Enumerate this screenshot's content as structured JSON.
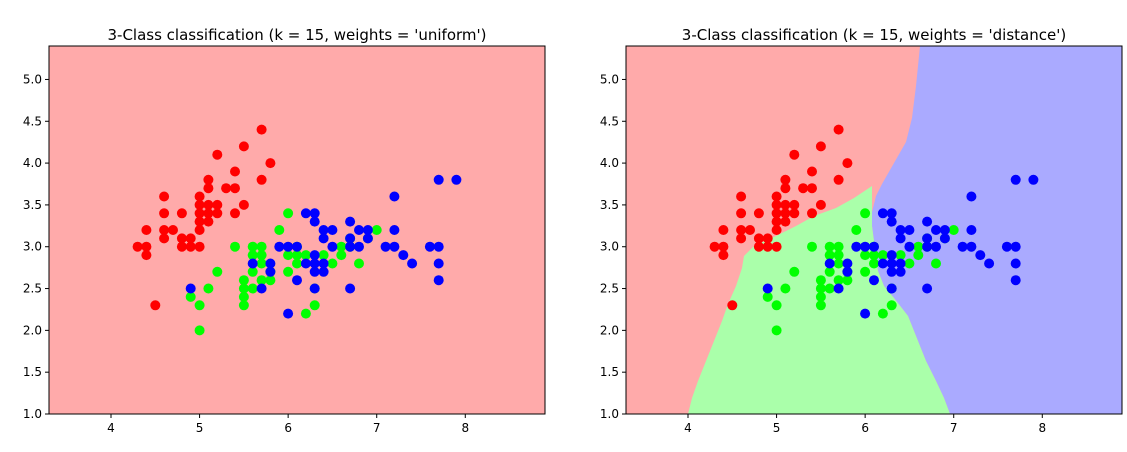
{
  "chart_data": [
    {
      "type": "scatter",
      "title": "3-Class classification (k = 15, weights = 'uniform')",
      "xlabel": "",
      "ylabel": "",
      "xlim": [
        3.3,
        8.9
      ],
      "ylim": [
        1.0,
        5.4
      ],
      "xticks": [
        "4",
        "5",
        "6",
        "7",
        "8"
      ],
      "yticks": [
        "1.0",
        "1.5",
        "2.0",
        "2.5",
        "3.0",
        "3.5",
        "4.0",
        "4.5",
        "5.0"
      ],
      "background_regions": "entire plot area predicted as red class",
      "grid": false,
      "series": [
        {
          "color": "#ff0000",
          "points": [
            [
              4.3,
              3.0
            ],
            [
              4.4,
              2.9
            ],
            [
              4.4,
              3.0
            ],
            [
              4.4,
              3.2
            ],
            [
              4.5,
              2.3
            ],
            [
              4.6,
              3.1
            ],
            [
              4.6,
              3.2
            ],
            [
              4.6,
              3.4
            ],
            [
              4.6,
              3.6
            ],
            [
              4.7,
              3.2
            ],
            [
              4.8,
              3.0
            ],
            [
              4.8,
              3.1
            ],
            [
              4.8,
              3.4
            ],
            [
              4.9,
              3.0
            ],
            [
              4.9,
              3.1
            ],
            [
              5.0,
              3.0
            ],
            [
              5.0,
              3.2
            ],
            [
              5.0,
              3.3
            ],
            [
              5.0,
              3.4
            ],
            [
              5.0,
              3.5
            ],
            [
              5.0,
              3.6
            ],
            [
              5.1,
              3.3
            ],
            [
              5.1,
              3.4
            ],
            [
              5.1,
              3.5
            ],
            [
              5.1,
              3.7
            ],
            [
              5.1,
              3.8
            ],
            [
              5.2,
              3.4
            ],
            [
              5.2,
              3.5
            ],
            [
              5.2,
              4.1
            ],
            [
              5.3,
              3.7
            ],
            [
              5.4,
              3.4
            ],
            [
              5.4,
              3.7
            ],
            [
              5.4,
              3.9
            ],
            [
              5.5,
              3.5
            ],
            [
              5.5,
              4.2
            ],
            [
              5.7,
              3.8
            ],
            [
              5.7,
              4.4
            ],
            [
              5.8,
              4.0
            ]
          ]
        },
        {
          "color": "#00ff00",
          "points": [
            [
              4.9,
              2.4
            ],
            [
              5.0,
              2.0
            ],
            [
              5.0,
              2.3
            ],
            [
              5.1,
              2.5
            ],
            [
              5.2,
              2.7
            ],
            [
              5.4,
              3.0
            ],
            [
              5.5,
              2.3
            ],
            [
              5.5,
              2.4
            ],
            [
              5.5,
              2.5
            ],
            [
              5.5,
              2.6
            ],
            [
              5.6,
              2.5
            ],
            [
              5.6,
              2.7
            ],
            [
              5.6,
              2.9
            ],
            [
              5.6,
              3.0
            ],
            [
              5.7,
              2.6
            ],
            [
              5.7,
              2.8
            ],
            [
              5.7,
              2.9
            ],
            [
              5.7,
              3.0
            ],
            [
              5.8,
              2.6
            ],
            [
              5.8,
              2.7
            ],
            [
              5.9,
              3.2
            ],
            [
              6.0,
              2.7
            ],
            [
              6.0,
              2.9
            ],
            [
              6.0,
              3.4
            ],
            [
              6.1,
              2.8
            ],
            [
              6.1,
              2.9
            ],
            [
              6.1,
              3.0
            ],
            [
              6.2,
              2.2
            ],
            [
              6.2,
              2.9
            ],
            [
              6.3,
              2.3
            ],
            [
              6.3,
              2.5
            ],
            [
              6.4,
              2.9
            ],
            [
              6.5,
              2.8
            ],
            [
              6.6,
              2.9
            ],
            [
              6.6,
              3.0
            ],
            [
              6.7,
              3.0
            ],
            [
              6.7,
              3.1
            ],
            [
              6.8,
              2.8
            ],
            [
              6.9,
              3.1
            ],
            [
              7.0,
              3.2
            ]
          ]
        },
        {
          "color": "#0000ff",
          "points": [
            [
              4.9,
              2.5
            ],
            [
              5.6,
              2.8
            ],
            [
              5.7,
              2.5
            ],
            [
              5.8,
              2.7
            ],
            [
              5.8,
              2.8
            ],
            [
              5.9,
              3.0
            ],
            [
              6.0,
              2.2
            ],
            [
              6.0,
              3.0
            ],
            [
              6.1,
              2.6
            ],
            [
              6.1,
              3.0
            ],
            [
              6.2,
              2.8
            ],
            [
              6.2,
              3.4
            ],
            [
              6.3,
              2.5
            ],
            [
              6.3,
              2.7
            ],
            [
              6.3,
              2.8
            ],
            [
              6.3,
              2.9
            ],
            [
              6.3,
              3.3
            ],
            [
              6.3,
              3.4
            ],
            [
              6.4,
              2.7
            ],
            [
              6.4,
              2.8
            ],
            [
              6.4,
              3.1
            ],
            [
              6.4,
              3.2
            ],
            [
              6.5,
              3.0
            ],
            [
              6.5,
              3.2
            ],
            [
              6.7,
              2.5
            ],
            [
              6.7,
              3.0
            ],
            [
              6.7,
              3.1
            ],
            [
              6.7,
              3.3
            ],
            [
              6.8,
              3.0
            ],
            [
              6.8,
              3.2
            ],
            [
              6.9,
              3.1
            ],
            [
              6.9,
              3.2
            ],
            [
              7.1,
              3.0
            ],
            [
              7.2,
              3.0
            ],
            [
              7.2,
              3.2
            ],
            [
              7.2,
              3.6
            ],
            [
              7.3,
              2.9
            ],
            [
              7.4,
              2.8
            ],
            [
              7.6,
              3.0
            ],
            [
              7.7,
              2.6
            ],
            [
              7.7,
              2.8
            ],
            [
              7.7,
              3.0
            ],
            [
              7.7,
              3.8
            ],
            [
              7.9,
              3.8
            ]
          ]
        }
      ]
    },
    {
      "type": "scatter",
      "title": "3-Class classification (k = 15, weights = 'distance')",
      "xlabel": "",
      "ylabel": "",
      "xlim": [
        3.3,
        8.9
      ],
      "ylim": [
        1.0,
        5.4
      ],
      "xticks": [
        "4",
        "5",
        "6",
        "7",
        "8"
      ],
      "yticks": [
        "1.0",
        "1.5",
        "2.0",
        "2.5",
        "3.0",
        "3.5",
        "4.0",
        "4.5",
        "5.0"
      ],
      "background_regions": "red class left/top, green class bottom-center, blue class right",
      "region_colors": {
        "red": "#ffaaaa",
        "green": "#aaffaa",
        "blue": "#aaaaff"
      },
      "grid": false,
      "series": [
        {
          "color": "#ff0000",
          "points": [
            [
              4.3,
              3.0
            ],
            [
              4.4,
              2.9
            ],
            [
              4.4,
              3.0
            ],
            [
              4.4,
              3.2
            ],
            [
              4.5,
              2.3
            ],
            [
              4.6,
              3.1
            ],
            [
              4.6,
              3.2
            ],
            [
              4.6,
              3.4
            ],
            [
              4.6,
              3.6
            ],
            [
              4.7,
              3.2
            ],
            [
              4.8,
              3.0
            ],
            [
              4.8,
              3.1
            ],
            [
              4.8,
              3.4
            ],
            [
              4.9,
              3.0
            ],
            [
              4.9,
              3.1
            ],
            [
              5.0,
              3.0
            ],
            [
              5.0,
              3.2
            ],
            [
              5.0,
              3.3
            ],
            [
              5.0,
              3.4
            ],
            [
              5.0,
              3.5
            ],
            [
              5.0,
              3.6
            ],
            [
              5.1,
              3.3
            ],
            [
              5.1,
              3.4
            ],
            [
              5.1,
              3.5
            ],
            [
              5.1,
              3.7
            ],
            [
              5.1,
              3.8
            ],
            [
              5.2,
              3.4
            ],
            [
              5.2,
              3.5
            ],
            [
              5.2,
              4.1
            ],
            [
              5.3,
              3.7
            ],
            [
              5.4,
              3.4
            ],
            [
              5.4,
              3.7
            ],
            [
              5.4,
              3.9
            ],
            [
              5.5,
              3.5
            ],
            [
              5.5,
              4.2
            ],
            [
              5.7,
              3.8
            ],
            [
              5.7,
              4.4
            ],
            [
              5.8,
              4.0
            ]
          ]
        },
        {
          "color": "#00ff00",
          "points": [
            [
              4.9,
              2.4
            ],
            [
              5.0,
              2.0
            ],
            [
              5.0,
              2.3
            ],
            [
              5.1,
              2.5
            ],
            [
              5.2,
              2.7
            ],
            [
              5.4,
              3.0
            ],
            [
              5.5,
              2.3
            ],
            [
              5.5,
              2.4
            ],
            [
              5.5,
              2.5
            ],
            [
              5.5,
              2.6
            ],
            [
              5.6,
              2.5
            ],
            [
              5.6,
              2.7
            ],
            [
              5.6,
              2.9
            ],
            [
              5.6,
              3.0
            ],
            [
              5.7,
              2.6
            ],
            [
              5.7,
              2.8
            ],
            [
              5.7,
              2.9
            ],
            [
              5.7,
              3.0
            ],
            [
              5.8,
              2.6
            ],
            [
              5.8,
              2.7
            ],
            [
              5.9,
              3.2
            ],
            [
              6.0,
              2.7
            ],
            [
              6.0,
              2.9
            ],
            [
              6.0,
              3.4
            ],
            [
              6.1,
              2.8
            ],
            [
              6.1,
              2.9
            ],
            [
              6.1,
              3.0
            ],
            [
              6.2,
              2.2
            ],
            [
              6.2,
              2.9
            ],
            [
              6.3,
              2.3
            ],
            [
              6.3,
              2.5
            ],
            [
              6.4,
              2.9
            ],
            [
              6.5,
              2.8
            ],
            [
              6.6,
              2.9
            ],
            [
              6.6,
              3.0
            ],
            [
              6.7,
              3.0
            ],
            [
              6.7,
              3.1
            ],
            [
              6.8,
              2.8
            ],
            [
              6.9,
              3.1
            ],
            [
              7.0,
              3.2
            ]
          ]
        },
        {
          "color": "#0000ff",
          "points": [
            [
              4.9,
              2.5
            ],
            [
              5.6,
              2.8
            ],
            [
              5.7,
              2.5
            ],
            [
              5.8,
              2.7
            ],
            [
              5.8,
              2.8
            ],
            [
              5.9,
              3.0
            ],
            [
              6.0,
              2.2
            ],
            [
              6.0,
              3.0
            ],
            [
              6.1,
              2.6
            ],
            [
              6.1,
              3.0
            ],
            [
              6.2,
              2.8
            ],
            [
              6.2,
              3.4
            ],
            [
              6.3,
              2.5
            ],
            [
              6.3,
              2.7
            ],
            [
              6.3,
              2.8
            ],
            [
              6.3,
              2.9
            ],
            [
              6.3,
              3.3
            ],
            [
              6.3,
              3.4
            ],
            [
              6.4,
              2.7
            ],
            [
              6.4,
              2.8
            ],
            [
              6.4,
              3.1
            ],
            [
              6.4,
              3.2
            ],
            [
              6.5,
              3.0
            ],
            [
              6.5,
              3.2
            ],
            [
              6.7,
              2.5
            ],
            [
              6.7,
              3.0
            ],
            [
              6.7,
              3.1
            ],
            [
              6.7,
              3.3
            ],
            [
              6.8,
              3.0
            ],
            [
              6.8,
              3.2
            ],
            [
              6.9,
              3.1
            ],
            [
              6.9,
              3.2
            ],
            [
              7.1,
              3.0
            ],
            [
              7.2,
              3.0
            ],
            [
              7.2,
              3.2
            ],
            [
              7.2,
              3.6
            ],
            [
              7.3,
              2.9
            ],
            [
              7.4,
              2.8
            ],
            [
              7.6,
              3.0
            ],
            [
              7.7,
              2.6
            ],
            [
              7.7,
              2.8
            ],
            [
              7.7,
              3.0
            ],
            [
              7.7,
              3.8
            ],
            [
              7.9,
              3.8
            ]
          ]
        }
      ]
    }
  ]
}
